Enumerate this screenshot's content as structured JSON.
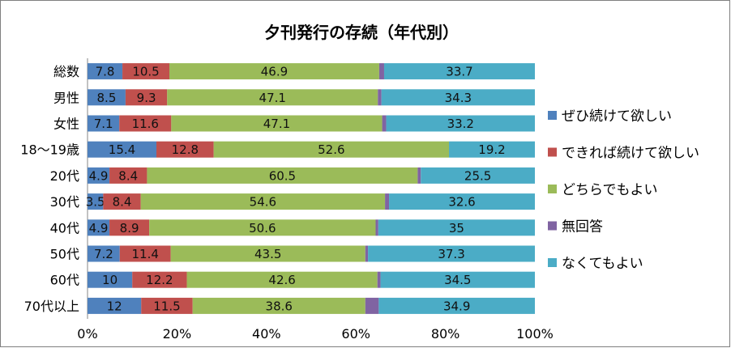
{
  "chart_data": {
    "type": "bar",
    "orientation": "horizontal",
    "stacked": "percent",
    "title": "夕刊発行の存続（年代別）",
    "categories": [
      "総数",
      "男性",
      "女性",
      "18～19歳",
      "20代",
      "30代",
      "40代",
      "50代",
      "60代",
      "70代以上"
    ],
    "series": [
      {
        "name": "ぜひ続けて欲しい",
        "color": "#4F81BD",
        "values": [
          7.8,
          8.5,
          7.1,
          15.4,
          4.9,
          3.5,
          4.9,
          7.2,
          10,
          12
        ],
        "labels": [
          "7.8",
          "8.5",
          "7.1",
          "15.4",
          "4.9",
          "3.5",
          "4.9",
          "7.2",
          "10",
          "12"
        ]
      },
      {
        "name": "できれば続けて欲しい",
        "color": "#C0504D",
        "values": [
          10.5,
          9.3,
          11.6,
          12.8,
          8.4,
          8.4,
          8.9,
          11.4,
          12.2,
          11.5
        ],
        "labels": [
          "10.5",
          "9.3",
          "11.6",
          "12.8",
          "8.4",
          "8.4",
          "8.9",
          "11.4",
          "12.2",
          "11.5"
        ]
      },
      {
        "name": "どちらでもよい",
        "color": "#9BBB59",
        "values": [
          46.9,
          47.1,
          47.1,
          52.6,
          60.5,
          54.6,
          50.6,
          43.5,
          42.6,
          38.6
        ],
        "labels": [
          "46.9",
          "47.1",
          "47.1",
          "52.6",
          "60.5",
          "54.6",
          "50.6",
          "43.5",
          "42.6",
          "38.6"
        ]
      },
      {
        "name": "無回答",
        "color": "#8064A2",
        "values": [
          1.1,
          0.8,
          0.9,
          0.0,
          0.7,
          0.9,
          0.6,
          0.6,
          0.7,
          3.0
        ],
        "labels": [
          "",
          "",
          "",
          "",
          "",
          "",
          "",
          "",
          "",
          ""
        ]
      },
      {
        "name": "なくてもよい",
        "color": "#4BACC6",
        "values": [
          33.7,
          34.3,
          33.2,
          19.2,
          25.5,
          32.6,
          35,
          37.3,
          34.5,
          34.9
        ],
        "labels": [
          "33.7",
          "34.3",
          "33.2",
          "19.2",
          "25.5",
          "32.6",
          "35",
          "37.3",
          "34.5",
          "34.9"
        ]
      }
    ],
    "xlim": [
      0,
      100
    ],
    "xticks": [
      "0%",
      "20%",
      "40%",
      "60%",
      "80%",
      "100%"
    ],
    "grid": false,
    "legend_position": "right"
  }
}
